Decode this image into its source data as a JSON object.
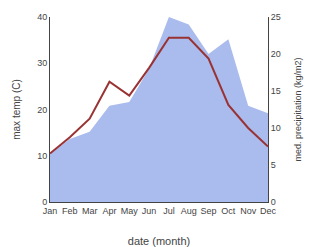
{
  "chart_data": {
    "type": "line",
    "categories": [
      "Jan",
      "Feb",
      "Mar",
      "Apr",
      "May",
      "Jun",
      "Jul",
      "Aug",
      "Sep",
      "Oct",
      "Nov",
      "Dec"
    ],
    "series": [
      {
        "type": "area",
        "axis": "y2",
        "color": "#aabbee",
        "values": [
          6.5,
          8.5,
          9.5,
          13.0,
          13.5,
          18.0,
          25.0,
          24.0,
          20.0,
          22.0,
          13.0,
          12.0
        ]
      },
      {
        "type": "line",
        "color": "#993333",
        "values": [
          10.5,
          14.0,
          18.0,
          26.0,
          23.0,
          29.0,
          35.5,
          35.5,
          31.0,
          21.0,
          16.0,
          12.0
        ]
      }
    ],
    "xlabel": "date (month)",
    "ylabel": "max temp (C)",
    "y2label": "med. precipitation (kg/m2)",
    "ylim": [
      0,
      40
    ],
    "yticks": [
      0,
      10,
      20,
      30,
      40
    ],
    "y2lim": [
      0,
      25
    ],
    "y2ticks": [
      0,
      5,
      10,
      15,
      20,
      25
    ],
    "grid": false
  }
}
